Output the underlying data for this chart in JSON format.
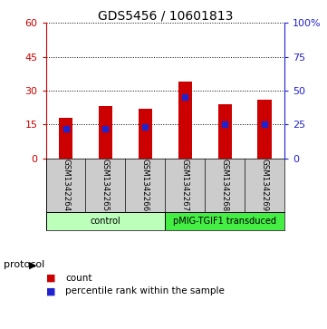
{
  "title": "GDS5456 / 10601813",
  "samples": [
    "GSM1342264",
    "GSM1342265",
    "GSM1342266",
    "GSM1342267",
    "GSM1342268",
    "GSM1342269"
  ],
  "counts": [
    18,
    23,
    22,
    34,
    24,
    26
  ],
  "percentile_ranks": [
    22,
    22,
    23,
    45,
    25,
    25
  ],
  "left_ylim": [
    0,
    60
  ],
  "left_yticks": [
    0,
    15,
    30,
    45,
    60
  ],
  "right_ylim": [
    0,
    100
  ],
  "right_yticks": [
    0,
    25,
    50,
    75,
    100
  ],
  "right_yticklabels": [
    "0",
    "25",
    "50",
    "75",
    "100%"
  ],
  "bar_color": "#cc0000",
  "marker_color": "#2222cc",
  "left_tick_color": "#cc0000",
  "right_tick_color": "#2222cc",
  "groups": [
    {
      "label": "control",
      "start": 0,
      "end": 3,
      "color": "#bbffbb"
    },
    {
      "label": "pMIG-TGIF1 transduced",
      "start": 3,
      "end": 6,
      "color": "#44ee44"
    }
  ],
  "protocol_label": "protocol",
  "legend_count_label": "count",
  "legend_pct_label": "percentile rank within the sample",
  "bg_color": "#ffffff",
  "label_area_color": "#cccccc",
  "title_fontsize": 10,
  "bar_width": 0.35
}
